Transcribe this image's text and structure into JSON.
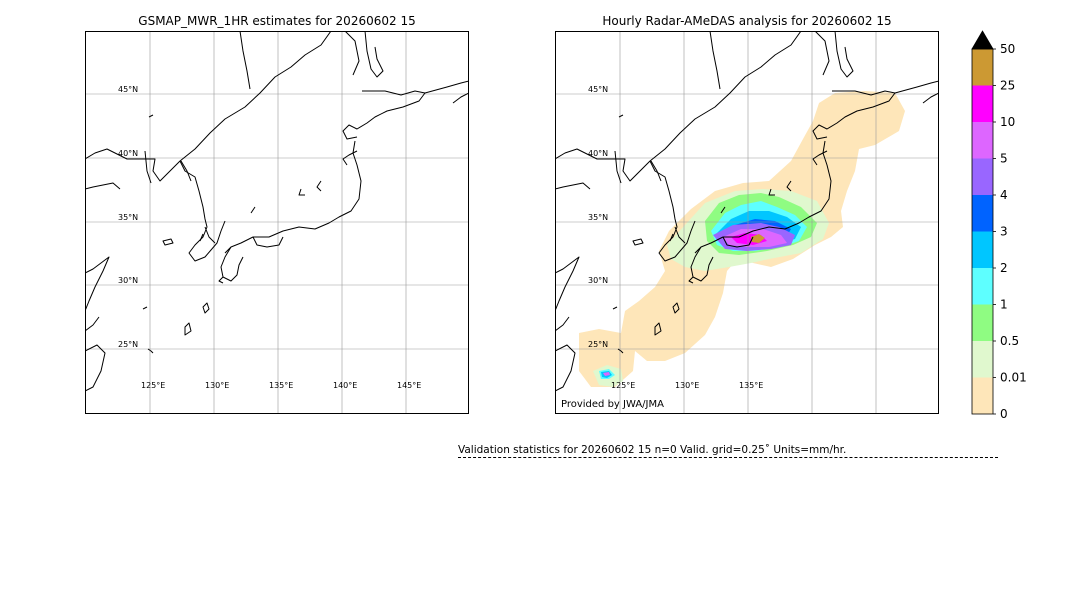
{
  "left_panel": {
    "title": "GSMAP_MWR_1HR estimates for 20260602 15",
    "lat_labels": [
      "45°N",
      "40°N",
      "35°N",
      "30°N",
      "25°N"
    ],
    "lon_labels": [
      "125°E",
      "130°E",
      "135°E",
      "140°E",
      "145°E"
    ]
  },
  "right_panel": {
    "title": "Hourly Radar-AMeDAS analysis for 20260602 15",
    "lat_labels": [
      "45°N",
      "40°N",
      "35°N",
      "30°N",
      "25°N"
    ],
    "lon_labels": [
      "125°E",
      "130°E",
      "135°E"
    ],
    "credit": "Provided by JWA/JMA"
  },
  "colorbar": {
    "labels": [
      "0",
      "0.01",
      "0.5",
      "1",
      "2",
      "3",
      "4",
      "5",
      "10",
      "25",
      "50"
    ],
    "colors": [
      "#fee6b9",
      "#e0f8ce",
      "#8ffc82",
      "#5effff",
      "#00c6ff",
      "#0063ff",
      "#9966ff",
      "#dd66ff",
      "#ff00ff",
      "#cc9933"
    ],
    "extend_color": "#000000"
  },
  "validation": {
    "text": "Validation statistics for 20260602 15  n=0 Valid. grid=0.25˚ Units=mm/hr."
  }
}
